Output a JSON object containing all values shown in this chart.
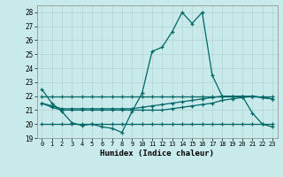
{
  "title": "",
  "xlabel": "Humidex (Indice chaleur)",
  "background_color": "#c8eaea",
  "grid_color": "#d0e8e8",
  "line_color": "#006666",
  "xlim": [
    -0.5,
    23.5
  ],
  "ylim": [
    19,
    28.5
  ],
  "yticks": [
    19,
    20,
    21,
    22,
    23,
    24,
    25,
    26,
    27,
    28
  ],
  "xticks": [
    0,
    1,
    2,
    3,
    4,
    5,
    6,
    7,
    8,
    9,
    10,
    11,
    12,
    13,
    14,
    15,
    16,
    17,
    18,
    19,
    20,
    21,
    22,
    23
  ],
  "series": [
    [
      22.5,
      21.5,
      20.9,
      20.1,
      19.9,
      20.0,
      19.8,
      19.7,
      19.4,
      20.9,
      22.2,
      25.2,
      25.5,
      26.6,
      28.0,
      27.2,
      28.0,
      23.5,
      22.0,
      22.0,
      22.0,
      20.8,
      20.0,
      19.8
    ],
    [
      21.5,
      21.2,
      21.0,
      21.0,
      21.0,
      21.0,
      21.0,
      21.0,
      21.0,
      21.0,
      21.0,
      21.0,
      21.0,
      21.1,
      21.2,
      21.3,
      21.4,
      21.5,
      21.7,
      21.8,
      21.9,
      22.0,
      21.9,
      21.8
    ],
    [
      21.5,
      21.3,
      21.1,
      21.1,
      21.1,
      21.1,
      21.1,
      21.1,
      21.1,
      21.1,
      21.2,
      21.3,
      21.4,
      21.5,
      21.6,
      21.7,
      21.8,
      21.9,
      22.0,
      22.0,
      22.0,
      22.0,
      21.9,
      21.8
    ],
    [
      22.0,
      22.0,
      22.0,
      22.0,
      22.0,
      22.0,
      22.0,
      22.0,
      22.0,
      22.0,
      22.0,
      22.0,
      22.0,
      22.0,
      22.0,
      22.0,
      22.0,
      22.0,
      22.0,
      22.0,
      22.0,
      22.0,
      22.0,
      22.0
    ],
    [
      20.0,
      20.0,
      20.0,
      20.0,
      20.0,
      20.0,
      20.0,
      20.0,
      20.0,
      20.0,
      20.0,
      20.0,
      20.0,
      20.0,
      20.0,
      20.0,
      20.0,
      20.0,
      20.0,
      20.0,
      20.0,
      20.0,
      20.0,
      20.0
    ]
  ]
}
